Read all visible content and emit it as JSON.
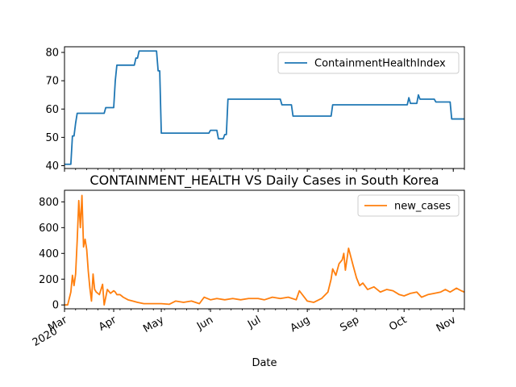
{
  "chart_data": [
    {
      "type": "line",
      "title": "",
      "xlabel": "",
      "ylabel": "",
      "ylim": [
        39,
        82
      ],
      "yticks": [
        40,
        50,
        60,
        70,
        80
      ],
      "legend": "top-right",
      "series": [
        {
          "name": "ContainmentHealthIndex",
          "color": "#1f77b4",
          "x": [
            "2020-03-01",
            "2020-03-05",
            "2020-03-06",
            "2020-03-07",
            "2020-03-08",
            "2020-03-09",
            "2020-03-26",
            "2020-03-27",
            "2020-04-01",
            "2020-04-02",
            "2020-04-03",
            "2020-04-14",
            "2020-04-15",
            "2020-04-16",
            "2020-04-17",
            "2020-04-28",
            "2020-04-29",
            "2020-04-30",
            "2020-05-01",
            "2020-05-31",
            "2020-06-01",
            "2020-06-05",
            "2020-06-06",
            "2020-06-09",
            "2020-06-10",
            "2020-06-11",
            "2020-06-12",
            "2020-07-15",
            "2020-07-16",
            "2020-07-22",
            "2020-07-23",
            "2020-08-16",
            "2020-08-17",
            "2020-10-03",
            "2020-10-04",
            "2020-10-05",
            "2020-10-09",
            "2020-10-10",
            "2020-10-11",
            "2020-10-12",
            "2020-10-20",
            "2020-10-21",
            "2020-10-30",
            "2020-10-31",
            "2020-11-08"
          ],
          "values": [
            40.5,
            40.5,
            50.5,
            50.5,
            55,
            58.5,
            58.5,
            60.5,
            60.5,
            70,
            75.5,
            75.5,
            78,
            78,
            80.5,
            80.5,
            73.5,
            73.5,
            51.5,
            51.5,
            52.5,
            52.5,
            49.5,
            49.5,
            51,
            51,
            63.5,
            63.5,
            61.5,
            61.5,
            57.5,
            57.5,
            61.5,
            61.5,
            64,
            62,
            62,
            65,
            63.5,
            63.5,
            63.5,
            62.5,
            62.5,
            56.5,
            56.5
          ]
        }
      ]
    },
    {
      "type": "line",
      "title": "CONTAINMENT_HEALTH VS Daily Cases in South Korea",
      "xlabel": "Date",
      "ylabel": "",
      "ylim": [
        -30,
        890
      ],
      "yticks": [
        0,
        200,
        400,
        600,
        800
      ],
      "legend": "top-right",
      "x_tick_labels": [
        "Mar",
        "2020",
        "Apr",
        "May",
        "Jun",
        "Jul",
        "Aug",
        "Sep",
        "Oct",
        "Nov"
      ],
      "series": [
        {
          "name": "new_cases",
          "color": "#ff7f0e",
          "x": [
            "2020-03-01",
            "2020-03-03",
            "2020-03-05",
            "2020-03-06",
            "2020-03-07",
            "2020-03-08",
            "2020-03-09",
            "2020-03-10",
            "2020-03-11",
            "2020-03-12",
            "2020-03-13",
            "2020-03-14",
            "2020-03-15",
            "2020-03-16",
            "2020-03-17",
            "2020-03-18",
            "2020-03-19",
            "2020-03-20",
            "2020-03-21",
            "2020-03-23",
            "2020-03-25",
            "2020-03-26",
            "2020-03-28",
            "2020-03-30",
            "2020-04-01",
            "2020-04-02",
            "2020-04-03",
            "2020-04-05",
            "2020-04-07",
            "2020-04-10",
            "2020-04-13",
            "2020-04-16",
            "2020-04-20",
            "2020-04-25",
            "2020-05-01",
            "2020-05-06",
            "2020-05-10",
            "2020-05-15",
            "2020-05-20",
            "2020-05-25",
            "2020-05-28",
            "2020-06-01",
            "2020-06-05",
            "2020-06-10",
            "2020-06-15",
            "2020-06-20",
            "2020-06-25",
            "2020-07-01",
            "2020-07-05",
            "2020-07-10",
            "2020-07-15",
            "2020-07-20",
            "2020-07-25",
            "2020-07-27",
            "2020-08-01",
            "2020-08-05",
            "2020-08-10",
            "2020-08-14",
            "2020-08-16",
            "2020-08-17",
            "2020-08-19",
            "2020-08-21",
            "2020-08-23",
            "2020-08-24",
            "2020-08-25",
            "2020-08-27",
            "2020-08-30",
            "2020-09-01",
            "2020-09-03",
            "2020-09-05",
            "2020-09-08",
            "2020-09-12",
            "2020-09-16",
            "2020-09-20",
            "2020-09-24",
            "2020-09-28",
            "2020-10-01",
            "2020-10-05",
            "2020-10-09",
            "2020-10-12",
            "2020-10-16",
            "2020-10-20",
            "2020-10-24",
            "2020-10-27",
            "2020-10-30",
            "2020-11-03",
            "2020-11-06",
            "2020-11-08"
          ],
          "values": [
            0,
            0,
            100,
            230,
            150,
            240,
            500,
            810,
            600,
            850,
            450,
            510,
            430,
            260,
            130,
            30,
            240,
            120,
            100,
            80,
            160,
            0,
            120,
            90,
            110,
            100,
            80,
            80,
            60,
            40,
            30,
            20,
            10,
            10,
            10,
            5,
            30,
            20,
            30,
            10,
            60,
            40,
            50,
            40,
            50,
            40,
            50,
            50,
            40,
            60,
            50,
            60,
            40,
            110,
            30,
            20,
            50,
            100,
            200,
            280,
            230,
            320,
            350,
            400,
            270,
            440,
            300,
            210,
            150,
            170,
            120,
            140,
            100,
            120,
            110,
            80,
            70,
            90,
            100,
            60,
            80,
            90,
            100,
            120,
            100,
            130,
            110,
            100
          ]
        }
      ]
    }
  ]
}
